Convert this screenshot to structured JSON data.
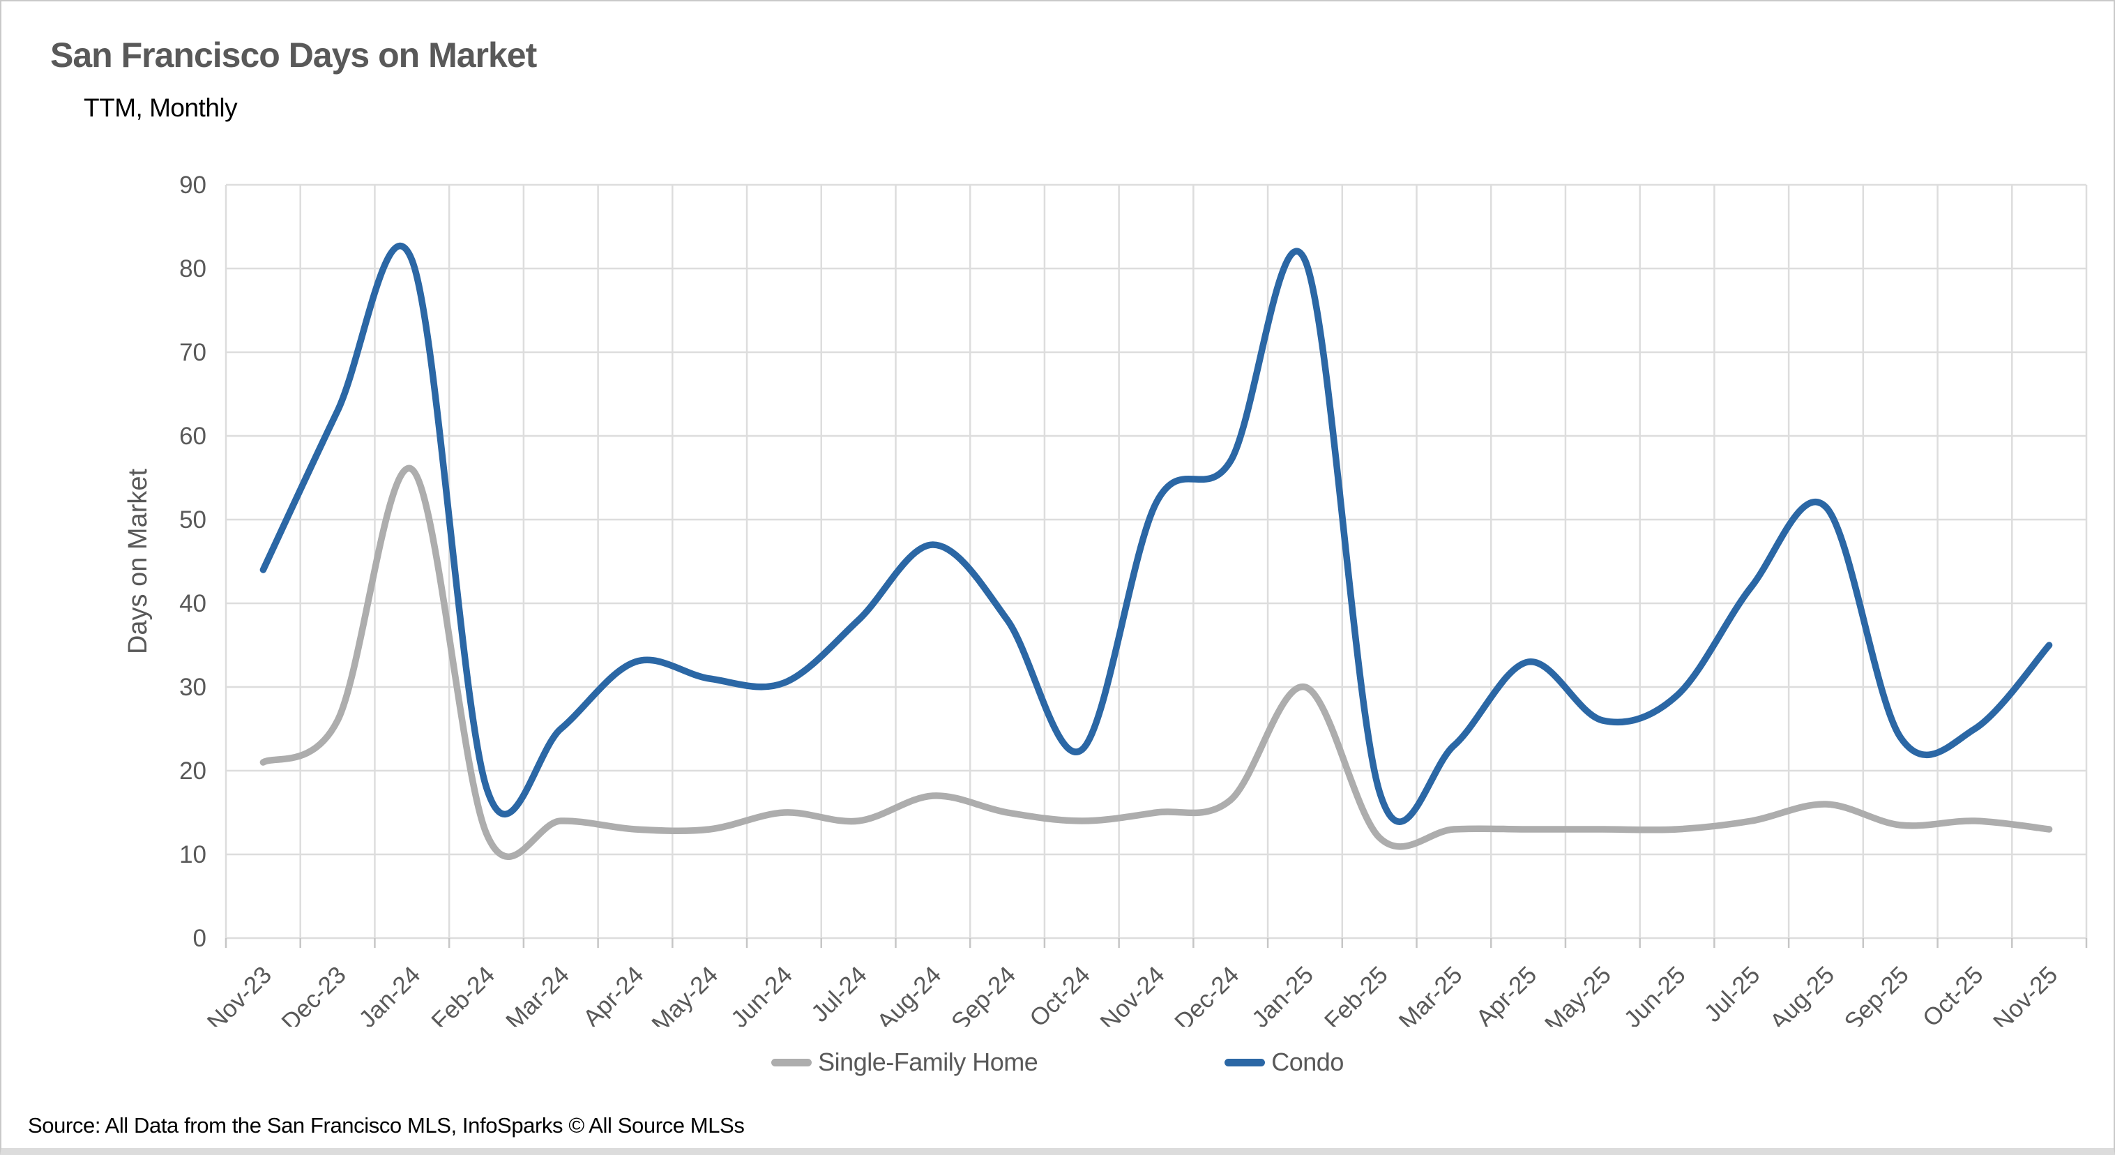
{
  "page": {
    "source_note": "Source: All Data from the San Francisco MLS, InfoSparks © All Source MLSs"
  },
  "chart_data": {
    "type": "line",
    "title": "San Francisco Days on Market",
    "subtitle": "TTM, Monthly",
    "xlabel": "",
    "ylabel": "Days on Market",
    "ylim": [
      0,
      90
    ],
    "ytick_step": 10,
    "yticks": [
      0,
      10,
      20,
      30,
      40,
      50,
      60,
      70,
      80,
      90
    ],
    "grid": true,
    "smooth_lines": true,
    "legend_position": "bottom",
    "categories": [
      "Nov-23",
      "Dec-23",
      "Jan-24",
      "Feb-24",
      "Mar-24",
      "Apr-24",
      "May-24",
      "Jun-24",
      "Jul-24",
      "Aug-24",
      "Sep-24",
      "Oct-24",
      "Nov-24",
      "Dec-24",
      "Jan-25",
      "Feb-25",
      "Mar-25",
      "Apr-25",
      "May-25",
      "Jun-25",
      "Jul-25",
      "Aug-25",
      "Sep-25",
      "Oct-25",
      "Nov-25"
    ],
    "series": [
      {
        "name": "Single-Family Home",
        "color": "#adadad",
        "values": [
          21,
          26,
          56,
          12.5,
          14,
          13,
          13,
          15,
          14,
          17,
          15,
          14,
          15,
          16.5,
          30,
          12,
          13,
          13,
          13,
          13,
          14,
          16,
          13.5,
          14,
          13
        ]
      },
      {
        "name": "Condo",
        "color": "#2b67a5",
        "values": [
          44,
          63,
          81,
          18,
          25,
          33,
          31,
          30.5,
          38,
          47,
          38,
          22.5,
          52,
          57,
          81,
          17.5,
          23,
          33,
          26,
          29,
          42,
          51.5,
          24,
          25,
          35
        ]
      }
    ]
  }
}
